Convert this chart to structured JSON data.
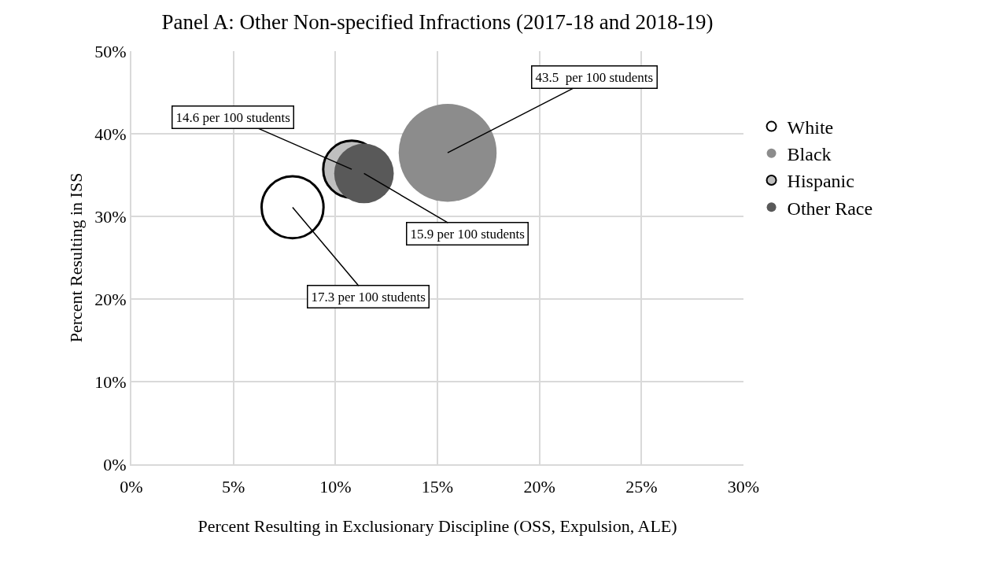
{
  "chart_data": {
    "type": "bubble",
    "title": "Panel A: Other Non-specified Infractions (2017-18 and 2018-19)",
    "xlabel": "Percent Resulting in Exclusionary Discipline (OSS, Expulsion, ALE)",
    "ylabel": "Percent Resulting in ISS",
    "series": [
      {
        "name": "White",
        "color": "#ffffff",
        "x": [
          7.9
        ],
        "values": [
          31.1
        ],
        "sizes": [
          0.4
        ]
      },
      {
        "name": "Black",
        "color": "#8c8c8c",
        "x": [
          15.5
        ],
        "values": [
          37.7
        ],
        "sizes": [
          1
        ]
      },
      {
        "name": "Hispanic",
        "color": "#bfbfbf",
        "x": [
          10.8
        ],
        "values": [
          35.7
        ],
        "sizes": [
          0.34
        ]
      },
      {
        "name": "Other Race",
        "color": "#595959",
        "x": [
          11.4
        ],
        "values": [
          35.2
        ],
        "sizes": [
          0.37
        ]
      }
    ],
    "annotations": [
      {
        "text": "17.3 per 100 students",
        "x": 7.9,
        "y": 31.1
      },
      {
        "text": "43.5  per 100 students",
        "x": 15.5,
        "y": 37.7
      },
      {
        "text": "14.6 per 100 students",
        "x": 10.8,
        "y": 35.7
      },
      {
        "text": "15.9 per 100 students",
        "x": 11.4,
        "y": 35.2
      }
    ],
    "xlim": [
      0,
      30
    ],
    "xticks": [
      {
        "value": 0,
        "label": "0%"
      },
      {
        "value": 5,
        "label": "5%"
      },
      {
        "value": 10,
        "label": "10%"
      },
      {
        "value": 15,
        "label": "15%"
      },
      {
        "value": 20,
        "label": "20%"
      },
      {
        "value": 25,
        "label": "25%"
      },
      {
        "value": 30,
        "label": "30%"
      }
    ],
    "ylim": [
      0,
      50
    ],
    "yticks": [
      {
        "value": 0,
        "label": "0%"
      },
      {
        "value": 10,
        "label": "10%"
      },
      {
        "value": 20,
        "label": "20%"
      },
      {
        "value": 30,
        "label": "30%"
      },
      {
        "value": 40,
        "label": "40%"
      },
      {
        "value": 50,
        "label": "50%"
      }
    ],
    "grid": true,
    "legend": "right",
    "marker": "circle"
  }
}
